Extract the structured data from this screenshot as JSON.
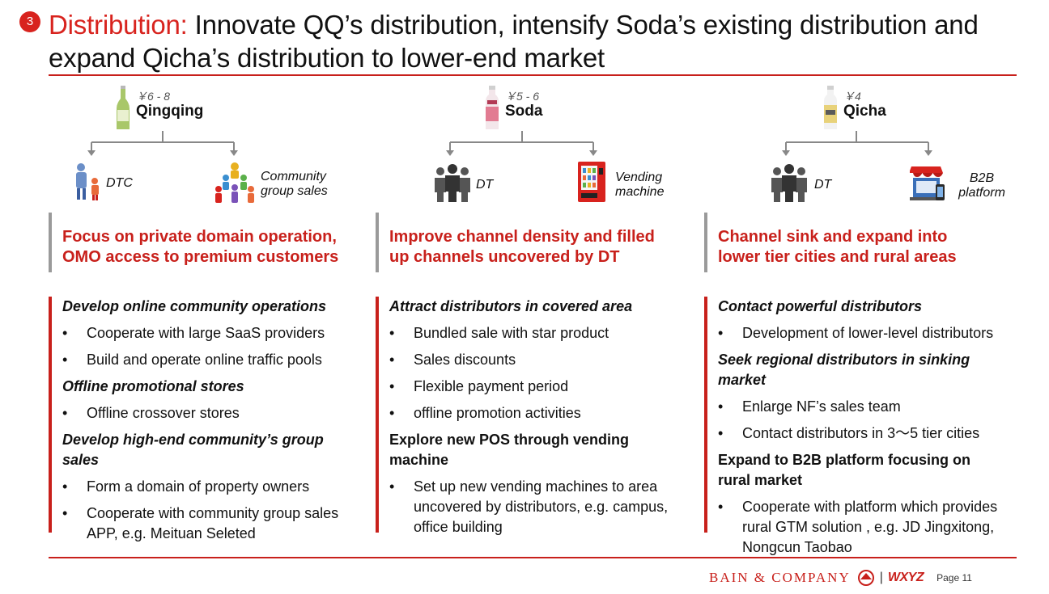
{
  "header": {
    "badge": "3",
    "title_highlight": "Distribution:",
    "title_rest": " Innovate QQ’s distribution, intensify Soda’s existing distribution and expand Qicha’s distribution to lower-end market"
  },
  "columns": [
    {
      "product": {
        "price": "￥6 - 8",
        "name": "Qingqing"
      },
      "channels": [
        {
          "label": "DTC",
          "icon": "family-icon"
        },
        {
          "label": "Community group sales",
          "icon": "community-group-icon"
        }
      ],
      "heading": [
        "Focus on private domain operation,",
        "OMO access to premium customers"
      ],
      "sections": [
        {
          "title": "Develop online community operations",
          "bullets": [
            "Cooperate with large SaaS providers",
            "Build and operate online traffic pools"
          ]
        },
        {
          "title": "Offline promotional stores",
          "bullets": [
            "Offline crossover stores"
          ]
        },
        {
          "title": "Develop high-end community’s group sales",
          "bullets": [
            "Form a domain of property owners",
            "Cooperate with community group sales APP, e.g. Meituan Seleted"
          ]
        }
      ]
    },
    {
      "product": {
        "price": "￥5 - 6",
        "name": "Soda"
      },
      "channels": [
        {
          "label": "DT",
          "icon": "team-icon"
        },
        {
          "label": "Vending machine",
          "icon": "vending-machine-icon"
        }
      ],
      "heading": [
        "Improve channel density and filled",
        "up channels uncovered by DT"
      ],
      "sections": [
        {
          "title": "Attract distributors in covered area",
          "bullets": [
            "Bundled sale with star product",
            "Sales discounts",
            "Flexible payment period",
            "offline promotion activities"
          ]
        },
        {
          "title": "Explore new POS through vending machine",
          "bullets": [
            "Set up new vending machines to area uncovered by distributors, e.g. campus, office building"
          ]
        }
      ]
    },
    {
      "product": {
        "price": "￥4",
        "name": "Qicha"
      },
      "channels": [
        {
          "label": "DT",
          "icon": "team-icon"
        },
        {
          "label": "B2B platform",
          "icon": "storefront-icon"
        }
      ],
      "heading": [
        "Channel sink and expand into",
        "lower tier cities and rural areas"
      ],
      "sections": [
        {
          "title": "Contact powerful distributors",
          "bullets": [
            "Development of lower-level distributors"
          ]
        },
        {
          "title": "Seek regional distributors in sinking market",
          "bullets": [
            "Enlarge NF’s sales team",
            "Contact distributors in 3～5 tier cities"
          ]
        },
        {
          "title": "Expand to B2B platform focusing on rural market",
          "bullets": [
            "Cooperate with platform which provides rural GTM solution , e.g. JD Jingxitong, Nongcun Taobao"
          ]
        }
      ]
    }
  ],
  "footer": {
    "company": "BAIN & COMPANY",
    "separator": "|",
    "partner": "WXYZ",
    "page": "Page 11"
  },
  "colors": {
    "accent": "#c8201b",
    "grey_bar": "#9a9a9a"
  }
}
